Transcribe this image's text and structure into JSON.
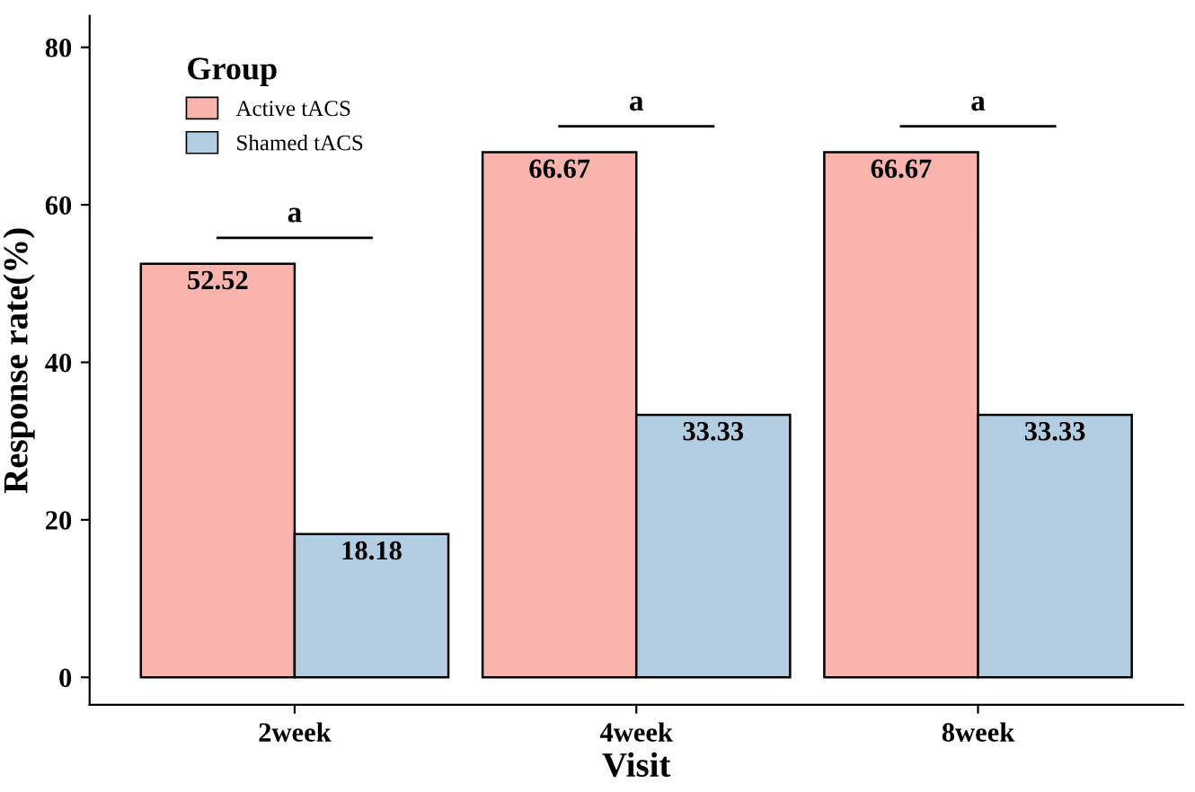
{
  "chart_data": {
    "type": "bar",
    "xlabel": "Visit",
    "ylabel": "Response rate(%)",
    "legend_title": "Group",
    "categories": [
      "2week",
      "4week",
      "8week"
    ],
    "series": [
      {
        "name": "Active tACS",
        "color": "#f9b4ae",
        "values": [
          52.52,
          66.67,
          66.67
        ]
      },
      {
        "name": "Shamed tACS",
        "color": "#b3cde2",
        "values": [
          18.18,
          33.33,
          33.33
        ]
      }
    ],
    "ylim": [
      -3.5,
      84
    ],
    "yticks": [
      0,
      20,
      40,
      60,
      80
    ],
    "data_labels": true,
    "grid": false,
    "legend": "top left",
    "annotations": [
      "a",
      "a",
      "a"
    ]
  }
}
